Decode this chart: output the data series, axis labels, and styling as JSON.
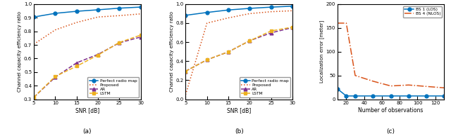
{
  "snr": [
    5,
    10,
    15,
    20,
    25,
    30
  ],
  "subplot_a": {
    "perfect": [
      0.905,
      0.932,
      0.947,
      0.958,
      0.97,
      0.978
    ],
    "proposed": [
      0.705,
      0.81,
      0.865,
      0.905,
      0.915,
      0.928
    ],
    "ar": [
      0.315,
      0.462,
      0.568,
      0.63,
      0.715,
      0.758
    ],
    "lstm": [
      0.315,
      0.468,
      0.543,
      0.625,
      0.718,
      0.772
    ],
    "ylim": [
      0.3,
      1.0
    ],
    "yticks": [
      0.3,
      0.4,
      0.5,
      0.6,
      0.7,
      0.8,
      0.9,
      1.0
    ],
    "xlabel": "SNR [dB]",
    "ylabel": "Channel capacity efficiency ratio",
    "label": "(a)"
  },
  "subplot_b": {
    "perfect": [
      0.882,
      0.912,
      0.938,
      0.955,
      0.968,
      0.978
    ],
    "proposed": [
      0.048,
      0.8,
      0.855,
      0.9,
      0.92,
      0.93
    ],
    "ar": [
      0.295,
      0.415,
      0.498,
      0.615,
      0.698,
      0.753
    ],
    "lstm": [
      0.295,
      0.415,
      0.498,
      0.615,
      0.718,
      0.758
    ],
    "ylim": [
      0.0,
      1.0
    ],
    "yticks": [
      0.0,
      0.2,
      0.4,
      0.6,
      0.8,
      1.0
    ],
    "xlabel": "SNR [dB]",
    "ylabel": "Channel capacity efficiency ratio",
    "label": "(b)"
  },
  "subplot_c": {
    "obs": [
      10,
      20,
      30,
      50,
      70,
      90,
      110,
      130
    ],
    "los": [
      22,
      7,
      7,
      7,
      7,
      7,
      7,
      7
    ],
    "nlos": [
      160,
      160,
      50,
      38,
      28,
      30,
      27,
      24
    ],
    "ylim": [
      0,
      200
    ],
    "yticks": [
      0,
      50,
      100,
      150,
      200
    ],
    "xlabel": "Number of observations",
    "ylabel": "Localization error [meter]",
    "label": "(c)"
  },
  "colors": {
    "perfect": "#0072BD",
    "proposed": "#D95319",
    "ar": "#7E2F8E",
    "lstm": "#EDB120",
    "los": "#0072BD",
    "nlos": "#D95319"
  }
}
